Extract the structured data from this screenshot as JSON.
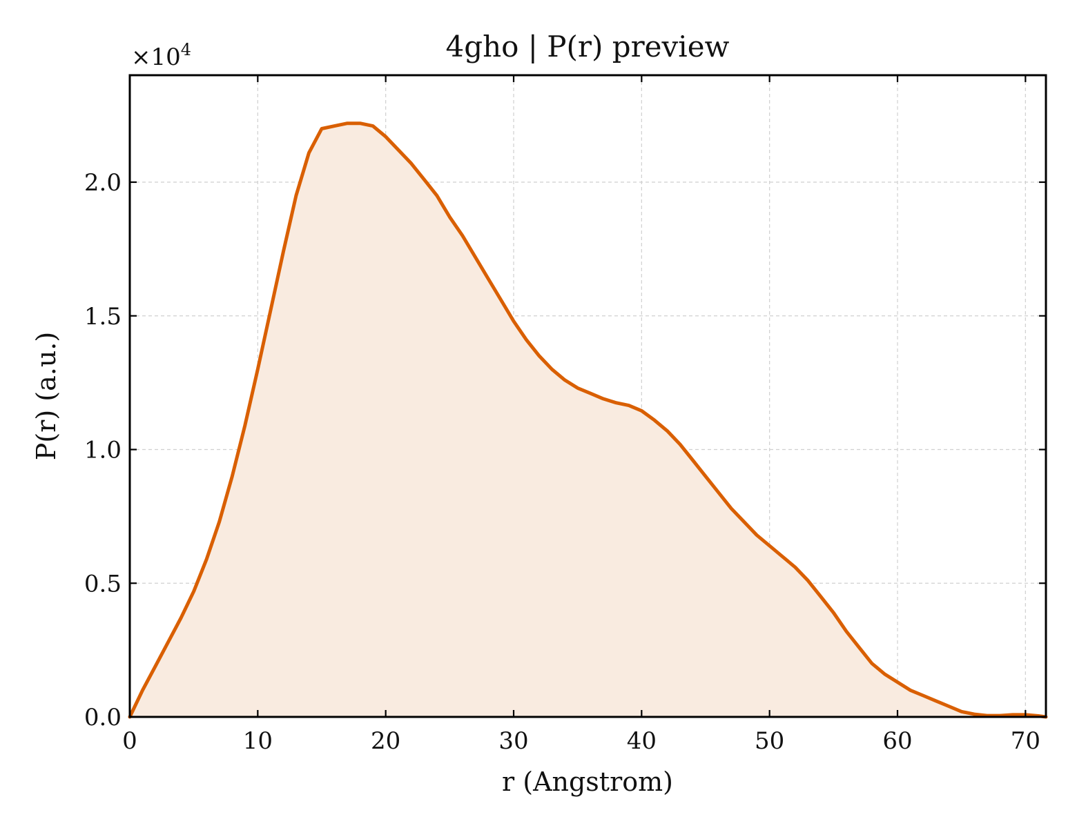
{
  "chart_data": {
    "type": "area",
    "title": "4gho | P(r) preview",
    "xlabel": "r (Angstrom)",
    "ylabel": "P(r) (a.u.)",
    "y_multiplier": "×10",
    "y_multiplier_exp": "4",
    "xlim": [
      0,
      71.6
    ],
    "ylim": [
      0,
      2.4
    ],
    "xticks": [
      0,
      10,
      20,
      30,
      40,
      50,
      60,
      70
    ],
    "xtick_labels": [
      "0",
      "10",
      "20",
      "30",
      "40",
      "50",
      "60",
      "70"
    ],
    "yticks": [
      0,
      0.5,
      1.0,
      1.5,
      2.0
    ],
    "ytick_labels": [
      "0.0",
      "0.5",
      "1.0",
      "1.5",
      "2.0"
    ],
    "grid": true,
    "series": [
      {
        "line_color": "#d95f02",
        "fill_color": "#f9ebe0",
        "x": [
          0,
          1,
          2,
          3,
          4,
          5,
          6,
          7,
          8,
          9,
          10,
          11,
          12,
          13,
          14,
          15,
          16,
          17,
          18,
          19,
          20,
          21,
          22,
          23,
          24,
          25,
          26,
          27,
          28,
          29,
          30,
          31,
          32,
          33,
          34,
          35,
          36,
          37,
          38,
          39,
          40,
          41,
          42,
          43,
          44,
          45,
          46,
          47,
          48,
          49,
          50,
          51,
          52,
          53,
          54,
          55,
          56,
          57,
          58,
          59,
          60,
          61,
          62,
          63,
          64,
          65,
          66,
          67,
          68,
          69,
          70,
          71,
          71.6
        ],
        "y": [
          0.0,
          0.1,
          0.19,
          0.28,
          0.37,
          0.47,
          0.59,
          0.73,
          0.9,
          1.09,
          1.3,
          1.52,
          1.74,
          1.95,
          2.11,
          2.2,
          2.21,
          2.22,
          2.22,
          2.21,
          2.17,
          2.12,
          2.07,
          2.01,
          1.95,
          1.87,
          1.8,
          1.72,
          1.64,
          1.56,
          1.48,
          1.41,
          1.35,
          1.3,
          1.26,
          1.23,
          1.21,
          1.19,
          1.175,
          1.165,
          1.145,
          1.11,
          1.07,
          1.02,
          0.96,
          0.9,
          0.84,
          0.78,
          0.73,
          0.68,
          0.64,
          0.6,
          0.56,
          0.51,
          0.45,
          0.39,
          0.32,
          0.26,
          0.2,
          0.16,
          0.13,
          0.1,
          0.08,
          0.06,
          0.04,
          0.02,
          0.01,
          0.005,
          0.005,
          0.008,
          0.008,
          0.004,
          0.0
        ]
      }
    ]
  }
}
